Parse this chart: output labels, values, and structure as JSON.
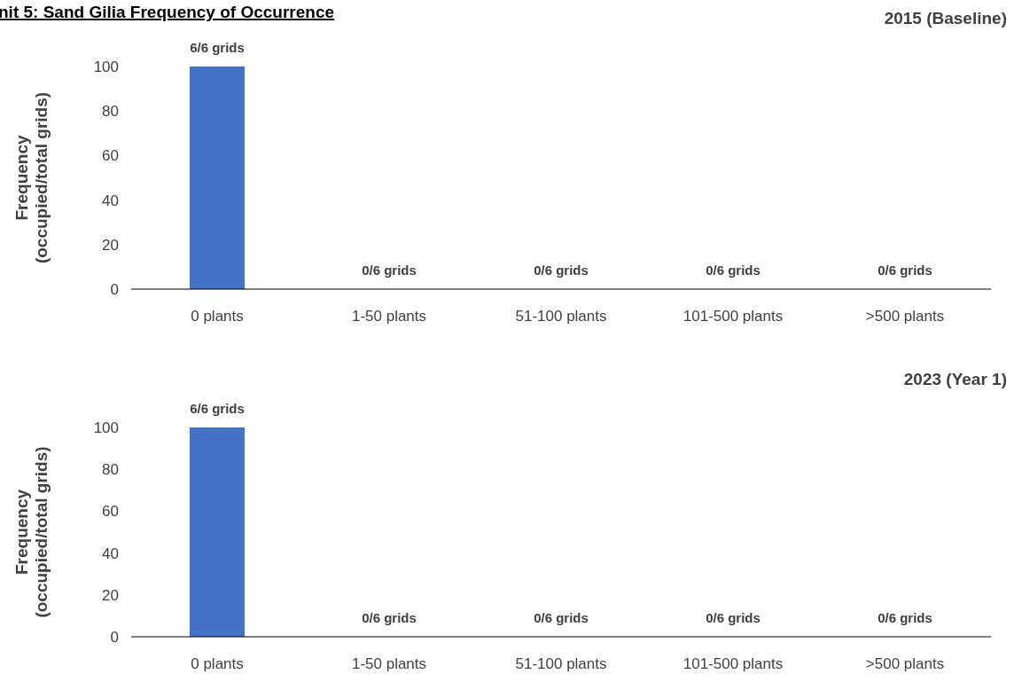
{
  "chart_data": [
    {
      "type": "bar",
      "title": "nit 5: Sand Gilia Frequency of Occurrence",
      "subtitle": "2015 (Baseline)",
      "ylabel": "Frequency\n(occupied/total grids)",
      "categories": [
        "0 plants",
        "1-50 plants",
        "51-100 plants",
        "101-500 plants",
        ">500 plants"
      ],
      "values": [
        100,
        0,
        0,
        0,
        0
      ],
      "value_labels": [
        "6/6 grids",
        "0/6 grids",
        "0/6 grids",
        "0/6 grids",
        "0/6 grids"
      ],
      "color": "#4472c4",
      "ylim": [
        0,
        100
      ],
      "yticks": [
        0,
        20,
        40,
        60,
        80,
        100
      ]
    },
    {
      "type": "bar",
      "subtitle": "2023 (Year 1)",
      "ylabel": "Frequency\n(occupied/total grids)",
      "categories": [
        "0 plants",
        "1-50 plants",
        "51-100 plants",
        "101-500 plants",
        ">500 plants"
      ],
      "values": [
        100,
        0,
        0,
        0,
        0
      ],
      "value_labels": [
        "6/6 grids",
        "0/6 grids",
        "0/6 grids",
        "0/6 grids",
        "0/6 grids"
      ],
      "color": "#4472c4",
      "ylim": [
        0,
        100
      ],
      "yticks": [
        0,
        20,
        40,
        60,
        80,
        100
      ]
    }
  ]
}
